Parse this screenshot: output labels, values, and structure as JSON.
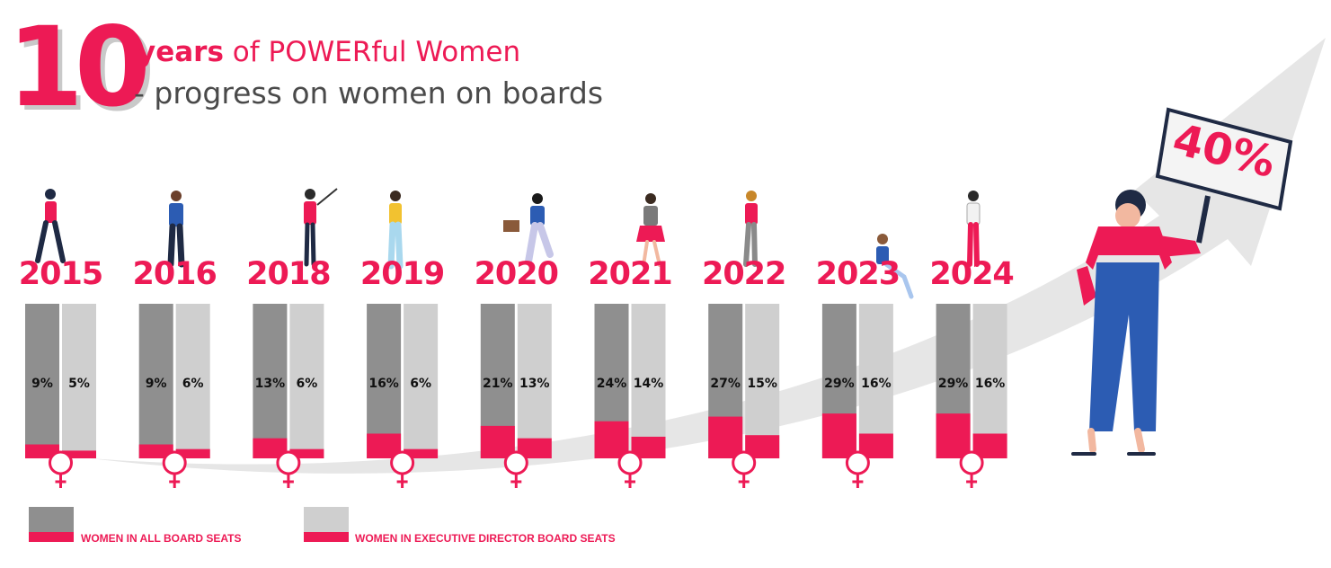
{
  "header": {
    "big_number": "10",
    "title_strong": "years",
    "title_rest": " of POWERful Women",
    "subtitle": "- progress on women on boards"
  },
  "target": {
    "label": "40%",
    "value": 40
  },
  "colors": {
    "accent": "#ed1a55",
    "all_seats_bar": "#8f8f8f",
    "exec_seats_bar": "#cfcfcf",
    "arrow": "#e6e6e6"
  },
  "icons": {
    "female": "female-symbol-icon"
  },
  "chart_data": {
    "type": "bar",
    "categories": [
      "2015",
      "2016",
      "2018",
      "2019",
      "2020",
      "2021",
      "2022",
      "2023",
      "2024"
    ],
    "series": [
      {
        "name": "WOMEN IN ALL BOARD SEATS",
        "values": [
          9,
          9,
          13,
          16,
          21,
          24,
          27,
          29,
          29
        ],
        "labels": [
          "9%",
          "9%",
          "13%",
          "16%",
          "21%",
          "24%",
          "27%",
          "29%",
          "29%"
        ]
      },
      {
        "name": "WOMEN IN EXECUTIVE DIRECTOR BOARD SEATS",
        "values": [
          5,
          6,
          6,
          6,
          13,
          14,
          15,
          16,
          16
        ],
        "labels": [
          "5%",
          "6%",
          "6%",
          "6%",
          "13%",
          "14%",
          "15%",
          "16%",
          "16%"
        ]
      }
    ],
    "ylim": [
      0,
      100
    ],
    "legend": "bottom-left",
    "annotations": [
      "40%"
    ]
  }
}
